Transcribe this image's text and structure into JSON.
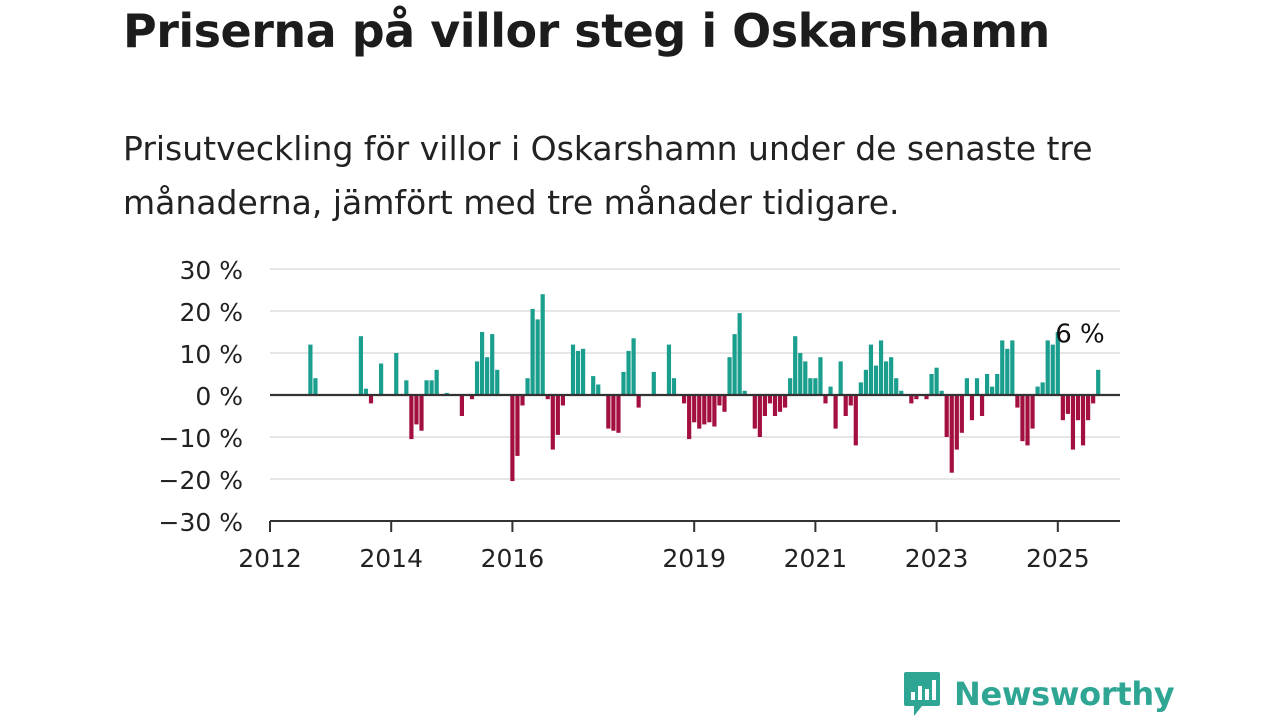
{
  "title": "Priserna på villor steg i Oskarshamn",
  "subtitle": "Prisutveckling för villor i Oskarshamn under de senaste tre månaderna, jämfört med tre månader tidigare.",
  "brand": {
    "name": "Newsworthy",
    "icon": "newsworthy-logo-icon"
  },
  "colors": {
    "positive": "#1a9e8e",
    "negative": "#a3103f",
    "logo": "#2fa594",
    "grid": "#dddddd",
    "axis": "#333333"
  },
  "chart_data": {
    "type": "bar",
    "title": "Priserna på villor steg i Oskarshamn",
    "subtitle": "Prisutveckling för villor i Oskarshamn under de senaste tre månaderna, jämfört med tre månader tidigare.",
    "xlabel": "",
    "ylabel": "",
    "ylim": [
      -30,
      30
    ],
    "grid": true,
    "y_ticks": [
      {
        "value": 30,
        "label": "30 %"
      },
      {
        "value": 20,
        "label": "20 %"
      },
      {
        "value": 10,
        "label": "10 %"
      },
      {
        "value": 0,
        "label": "0 %"
      },
      {
        "value": -10,
        "label": "−10 %"
      },
      {
        "value": -20,
        "label": "−20 %"
      },
      {
        "value": -30,
        "label": "−30 %"
      }
    ],
    "x_ticks": [
      {
        "date": "2012-01",
        "label": "2012"
      },
      {
        "date": "2014-01",
        "label": "2014"
      },
      {
        "date": "2016-01",
        "label": "2016"
      },
      {
        "date": "2019-01",
        "label": "2019"
      },
      {
        "date": "2021-01",
        "label": "2021"
      },
      {
        "date": "2023-01",
        "label": "2023"
      },
      {
        "date": "2025-01",
        "label": "2025"
      }
    ],
    "annotation": {
      "date": "2025-05",
      "value": 6,
      "label": "6 %"
    },
    "series": [
      {
        "points": [
          [
            "2012-09",
            12
          ],
          [
            "2012-10",
            4
          ],
          [
            "2013-07",
            14
          ],
          [
            "2013-08",
            1.5
          ],
          [
            "2013-09",
            -2
          ],
          [
            "2013-11",
            7.5
          ],
          [
            "2014-02",
            10
          ],
          [
            "2014-04",
            3.5
          ],
          [
            "2014-05",
            -10.5
          ],
          [
            "2014-06",
            -7
          ],
          [
            "2014-07",
            -8.5
          ],
          [
            "2014-08",
            3.5
          ],
          [
            "2014-09",
            3.5
          ],
          [
            "2014-10",
            6
          ],
          [
            "2014-12",
            0.5
          ],
          [
            "2015-03",
            -5
          ],
          [
            "2015-05",
            -1
          ],
          [
            "2015-06",
            8
          ],
          [
            "2015-07",
            15
          ],
          [
            "2015-08",
            9
          ],
          [
            "2015-09",
            14.5
          ],
          [
            "2015-10",
            6
          ],
          [
            "2016-01",
            -20.5
          ],
          [
            "2016-02",
            -14.5
          ],
          [
            "2016-03",
            -2.5
          ],
          [
            "2016-04",
            4
          ],
          [
            "2016-05",
            20.5
          ],
          [
            "2016-06",
            18
          ],
          [
            "2016-07",
            24
          ],
          [
            "2016-08",
            -1
          ],
          [
            "2016-09",
            -13
          ],
          [
            "2016-10",
            -9.5
          ],
          [
            "2016-11",
            -2.5
          ],
          [
            "2017-01",
            12
          ],
          [
            "2017-02",
            10.5
          ],
          [
            "2017-03",
            11
          ],
          [
            "2017-05",
            4.5
          ],
          [
            "2017-06",
            2.5
          ],
          [
            "2017-08",
            -8
          ],
          [
            "2017-09",
            -8.5
          ],
          [
            "2017-10",
            -9
          ],
          [
            "2017-11",
            5.5
          ],
          [
            "2017-12",
            10.5
          ],
          [
            "2018-01",
            13.5
          ],
          [
            "2018-02",
            -3
          ],
          [
            "2018-05",
            5.5
          ],
          [
            "2018-08",
            12
          ],
          [
            "2018-09",
            4
          ],
          [
            "2018-11",
            -2
          ],
          [
            "2018-12",
            -10.5
          ],
          [
            "2019-01",
            -6.5
          ],
          [
            "2019-02",
            -8
          ],
          [
            "2019-03",
            -7
          ],
          [
            "2019-04",
            -6.5
          ],
          [
            "2019-05",
            -7.5
          ],
          [
            "2019-06",
            -2.5
          ],
          [
            "2019-07",
            -4
          ],
          [
            "2019-08",
            9
          ],
          [
            "2019-09",
            14.5
          ],
          [
            "2019-10",
            19.5
          ],
          [
            "2019-11",
            1
          ],
          [
            "2020-01",
            -8
          ],
          [
            "2020-02",
            -10
          ],
          [
            "2020-03",
            -5
          ],
          [
            "2020-04",
            -2
          ],
          [
            "2020-05",
            -5
          ],
          [
            "2020-06",
            -4
          ],
          [
            "2020-07",
            -3
          ],
          [
            "2020-08",
            4
          ],
          [
            "2020-09",
            14
          ],
          [
            "2020-10",
            10
          ],
          [
            "2020-11",
            8
          ],
          [
            "2020-12",
            4
          ],
          [
            "2021-01",
            4
          ],
          [
            "2021-02",
            9
          ],
          [
            "2021-03",
            -2
          ],
          [
            "2021-04",
            2
          ],
          [
            "2021-05",
            -8
          ],
          [
            "2021-06",
            8
          ],
          [
            "2021-07",
            -5
          ],
          [
            "2021-08",
            -2.5
          ],
          [
            "2021-09",
            -12
          ],
          [
            "2021-10",
            3
          ],
          [
            "2021-11",
            6
          ],
          [
            "2021-12",
            12
          ],
          [
            "2022-01",
            7
          ],
          [
            "2022-02",
            13
          ],
          [
            "2022-03",
            8
          ],
          [
            "2022-04",
            9
          ],
          [
            "2022-05",
            4
          ],
          [
            "2022-06",
            1
          ],
          [
            "2022-08",
            -2
          ],
          [
            "2022-09",
            -1
          ],
          [
            "2022-11",
            -1
          ],
          [
            "2022-12",
            5
          ],
          [
            "2023-01",
            6.5
          ],
          [
            "2023-02",
            1
          ],
          [
            "2023-03",
            -10
          ],
          [
            "2023-04",
            -18.5
          ],
          [
            "2023-05",
            -13
          ],
          [
            "2023-06",
            -9
          ],
          [
            "2023-07",
            4
          ],
          [
            "2023-08",
            -6
          ],
          [
            "2023-09",
            4
          ],
          [
            "2023-10",
            -5
          ],
          [
            "2023-11",
            5
          ],
          [
            "2023-12",
            2
          ],
          [
            "2024-01",
            5
          ],
          [
            "2024-02",
            13
          ],
          [
            "2024-03",
            11
          ],
          [
            "2024-04",
            13
          ],
          [
            "2024-05",
            -3
          ],
          [
            "2024-06",
            -11
          ],
          [
            "2024-07",
            -12
          ],
          [
            "2024-08",
            -8
          ],
          [
            "2024-09",
            2
          ],
          [
            "2024-10",
            3
          ],
          [
            "2024-11",
            13
          ],
          [
            "2024-12",
            12
          ],
          [
            "2025-01",
            15
          ],
          [
            "2025-02",
            -6
          ],
          [
            "2025-03",
            -4.5
          ],
          [
            "2025-04",
            -13
          ],
          [
            "2025-05",
            -6
          ],
          [
            "2025-06",
            -12
          ],
          [
            "2025-07",
            -6
          ],
          [
            "2025-08",
            -2
          ],
          [
            "2025-09",
            6
          ]
        ]
      }
    ]
  }
}
